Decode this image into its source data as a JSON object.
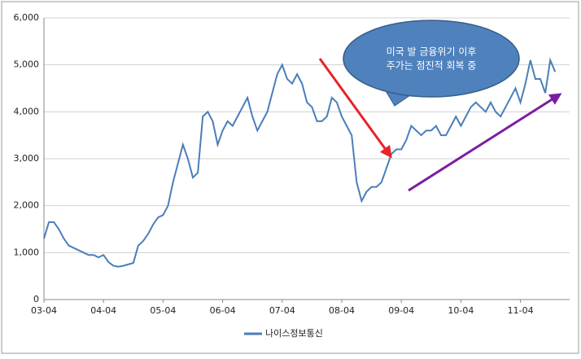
{
  "chart_data": {
    "type": "line",
    "categories": [
      "03-04",
      null,
      null,
      null,
      null,
      null,
      null,
      null,
      null,
      null,
      null,
      null,
      "04-04",
      null,
      null,
      null,
      null,
      null,
      null,
      null,
      null,
      null,
      null,
      null,
      "05-04",
      null,
      null,
      null,
      null,
      null,
      null,
      null,
      null,
      null,
      null,
      null,
      "06-04",
      null,
      null,
      null,
      null,
      null,
      null,
      null,
      null,
      null,
      null,
      null,
      "07-04",
      null,
      null,
      null,
      null,
      null,
      null,
      null,
      null,
      null,
      null,
      null,
      "08-04",
      null,
      null,
      null,
      null,
      null,
      null,
      null,
      null,
      null,
      null,
      null,
      "09-04",
      null,
      null,
      null,
      null,
      null,
      null,
      null,
      null,
      null,
      null,
      null,
      "10-04",
      null,
      null,
      null,
      null,
      null,
      null,
      null,
      null,
      null,
      null,
      null,
      "11-04",
      null,
      null,
      null,
      null,
      null,
      null,
      null
    ],
    "series": [
      {
        "name": "나이스정보통신",
        "color": "#4a7ebb",
        "values": [
          1300,
          1650,
          1650,
          1500,
          1300,
          1150,
          1100,
          1050,
          1000,
          950,
          950,
          900,
          950,
          800,
          720,
          700,
          720,
          750,
          780,
          1150,
          1250,
          1400,
          1600,
          1750,
          1800,
          2000,
          2500,
          2900,
          3300,
          3000,
          2600,
          2700,
          3900,
          4000,
          3800,
          3300,
          3600,
          3800,
          3700,
          3900,
          4100,
          4300,
          3900,
          3600,
          3800,
          4000,
          4400,
          4800,
          5000,
          4700,
          4600,
          4800,
          4600,
          4200,
          4100,
          3800,
          3800,
          3900,
          4300,
          4200,
          3900,
          3700,
          3500,
          2500,
          2100,
          2300,
          2400,
          2400,
          2500,
          2800,
          3100,
          3200,
          3200,
          3400,
          3700,
          3600,
          3500,
          3600,
          3600,
          3700,
          3500,
          3500,
          3700,
          3900,
          3700,
          3900,
          4100,
          4200,
          4100,
          4000,
          4200,
          4000,
          3900,
          4100,
          4300,
          4500,
          4200,
          4600,
          5100,
          4700,
          4700,
          4400,
          5100,
          4850
        ]
      }
    ],
    "ylim": [
      0,
      6000
    ],
    "yticks": [
      0,
      {
        "value": 1000,
        "label": "1,000"
      },
      {
        "value": 2000,
        "label": "2,000"
      },
      {
        "value": 3000,
        "label": "3,000"
      },
      {
        "value": 4000,
        "label": "4,000"
      },
      {
        "value": 5000,
        "label": "5,000"
      },
      {
        "value": 6000,
        "label": "6,000"
      }
    ],
    "grid": true,
    "annotation": [
      "미국 발 금융위기 이후",
      "주가는 점진적 회복 중"
    ]
  }
}
